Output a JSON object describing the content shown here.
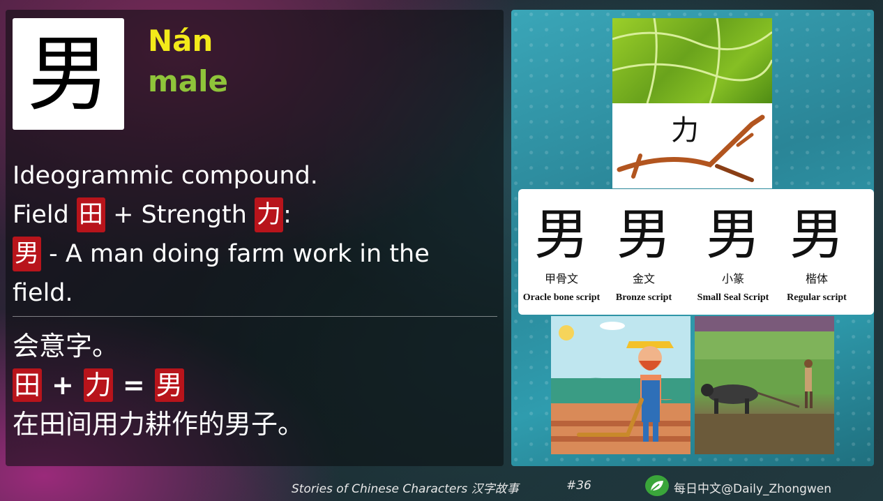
{
  "character": {
    "hanzi": "男",
    "pinyin": "Nán",
    "meaning": "male"
  },
  "explanation_en": {
    "line1": "Ideogrammic compound.",
    "line2_prefix": "Field ",
    "field_char": "田",
    "line2_mid": " + Strength ",
    "strength_char": "力",
    "line2_suffix": ":",
    "result_char": "男",
    "line3": " - A man doing farm work in the field."
  },
  "explanation_cn": {
    "line1": "会意字。",
    "formula_a": "田",
    "plus": "+",
    "formula_b": "力",
    "equals": "=",
    "formula_result": "男",
    "line3": "在田间用力耕作的男子。"
  },
  "plow_label": "力",
  "scripts": [
    {
      "glyph": "男",
      "cn": "甲骨文",
      "en": "Oracle bone script"
    },
    {
      "glyph": "男",
      "cn": "金文",
      "en": "Bronze script"
    },
    {
      "glyph": "男",
      "cn": "小篆",
      "en": "Small Seal Script"
    },
    {
      "glyph": "男",
      "cn": "楷体",
      "en": "Regular script"
    }
  ],
  "footer": {
    "title": "Stories of Chinese Characters 汉字故事",
    "number": "#36",
    "handle": "每日中文@Daily_Zhongwen"
  },
  "colors": {
    "pinyin": "#f3ea1a",
    "meaning": "#8fc43a",
    "highlight": "#b8141b"
  }
}
